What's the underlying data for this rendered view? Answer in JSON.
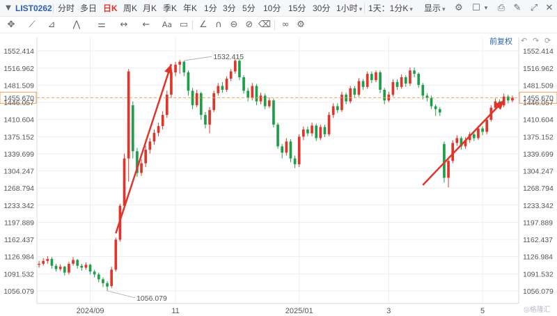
{
  "toolbar": {
    "symbol": "LIST0262",
    "periods": [
      "分时",
      "多日",
      "日K",
      "周K",
      "月K",
      "季K",
      "年K",
      "1分",
      "3分",
      "5分",
      "10分",
      "15分",
      "30分"
    ],
    "active_period": "日K",
    "hour_dropdown": "1小时",
    "interval_dropdown": "1天：1分K",
    "display_dropdown": "显示"
  },
  "restore_label": "前复权",
  "colors": {
    "up": "#e0352b",
    "down": "#1f9e49",
    "grid": "#eceef1",
    "current_line": "#f0a050",
    "arrow": "#e0352b"
  },
  "chart_data": {
    "type": "candlestick",
    "y_ticks": [
      "1552.414",
      "1516.962",
      "1481.509",
      "1446.057",
      "1410.604",
      "1375.152",
      "1339.699",
      "1304.247",
      "1268.794",
      "1233.342",
      "1197.889",
      "1162.437",
      "1126.984",
      "1091.532",
      "1056.079"
    ],
    "ylim": [
      1030,
      1580
    ],
    "x_ticks": [
      {
        "label": "2024/09",
        "index": 12
      },
      {
        "label": "11",
        "index": 32
      },
      {
        "label": "2025/01",
        "index": 61
      },
      {
        "label": "3",
        "index": 82
      },
      {
        "label": "5",
        "index": 104
      }
    ],
    "current_price": "1455.670",
    "current_value": 1455.67,
    "annotations": [
      {
        "label": "1532.415",
        "index": 34,
        "value": 1532.415
      },
      {
        "label": "1056.079",
        "index": 16,
        "value": 1056.079
      }
    ],
    "trend_arrows": [
      {
        "from_index": 18,
        "from_value": 1175,
        "to_index": 31,
        "to_value": 1525
      },
      {
        "from_index": 90,
        "from_value": 1275,
        "to_index": 109,
        "to_value": 1450
      }
    ],
    "candles": [
      {
        "o": 1110,
        "c": 1112,
        "h": 1118,
        "l": 1104
      },
      {
        "o": 1112,
        "c": 1118,
        "h": 1124,
        "l": 1108
      },
      {
        "o": 1118,
        "c": 1122,
        "h": 1128,
        "l": 1112
      },
      {
        "o": 1122,
        "c": 1108,
        "h": 1126,
        "l": 1102
      },
      {
        "o": 1108,
        "c": 1101,
        "h": 1112,
        "l": 1096
      },
      {
        "o": 1101,
        "c": 1106,
        "h": 1111,
        "l": 1097
      },
      {
        "o": 1106,
        "c": 1094,
        "h": 1108,
        "l": 1088
      },
      {
        "o": 1094,
        "c": 1112,
        "h": 1116,
        "l": 1090
      },
      {
        "o": 1112,
        "c": 1120,
        "h": 1126,
        "l": 1108
      },
      {
        "o": 1120,
        "c": 1108,
        "h": 1122,
        "l": 1102
      },
      {
        "o": 1108,
        "c": 1104,
        "h": 1112,
        "l": 1098
      },
      {
        "o": 1104,
        "c": 1110,
        "h": 1115,
        "l": 1100
      },
      {
        "o": 1110,
        "c": 1096,
        "h": 1112,
        "l": 1090
      },
      {
        "o": 1096,
        "c": 1090,
        "h": 1100,
        "l": 1084
      },
      {
        "o": 1090,
        "c": 1080,
        "h": 1094,
        "l": 1074
      },
      {
        "o": 1080,
        "c": 1072,
        "h": 1084,
        "l": 1064
      },
      {
        "o": 1072,
        "c": 1065,
        "h": 1076,
        "l": 1056
      },
      {
        "o": 1066,
        "c": 1100,
        "h": 1106,
        "l": 1062
      },
      {
        "o": 1100,
        "c": 1162,
        "h": 1166,
        "l": 1096
      },
      {
        "o": 1162,
        "c": 1232,
        "h": 1236,
        "l": 1158
      },
      {
        "o": 1232,
        "c": 1330,
        "h": 1340,
        "l": 1228
      },
      {
        "o": 1330,
        "c": 1510,
        "h": 1515,
        "l": 1282
      },
      {
        "o": 1440,
        "c": 1345,
        "h": 1448,
        "l": 1330
      },
      {
        "o": 1345,
        "c": 1300,
        "h": 1352,
        "l": 1292
      },
      {
        "o": 1300,
        "c": 1320,
        "h": 1328,
        "l": 1294
      },
      {
        "o": 1320,
        "c": 1348,
        "h": 1356,
        "l": 1312
      },
      {
        "o": 1348,
        "c": 1365,
        "h": 1372,
        "l": 1340
      },
      {
        "o": 1365,
        "c": 1383,
        "h": 1390,
        "l": 1358
      },
      {
        "o": 1383,
        "c": 1397,
        "h": 1404,
        "l": 1376
      },
      {
        "o": 1397,
        "c": 1420,
        "h": 1428,
        "l": 1390
      },
      {
        "o": 1420,
        "c": 1462,
        "h": 1470,
        "l": 1414
      },
      {
        "o": 1462,
        "c": 1508,
        "h": 1516,
        "l": 1455
      },
      {
        "o": 1508,
        "c": 1524,
        "h": 1530,
        "l": 1500
      },
      {
        "o": 1524,
        "c": 1530,
        "h": 1534,
        "l": 1505
      },
      {
        "o": 1530,
        "c": 1508,
        "h": 1532,
        "l": 1500
      },
      {
        "o": 1508,
        "c": 1470,
        "h": 1512,
        "l": 1460
      },
      {
        "o": 1470,
        "c": 1440,
        "h": 1476,
        "l": 1432
      },
      {
        "o": 1440,
        "c": 1465,
        "h": 1472,
        "l": 1436
      },
      {
        "o": 1465,
        "c": 1420,
        "h": 1468,
        "l": 1410
      },
      {
        "o": 1420,
        "c": 1400,
        "h": 1426,
        "l": 1392
      },
      {
        "o": 1400,
        "c": 1430,
        "h": 1436,
        "l": 1382
      },
      {
        "o": 1430,
        "c": 1465,
        "h": 1470,
        "l": 1426
      },
      {
        "o": 1465,
        "c": 1480,
        "h": 1486,
        "l": 1460
      },
      {
        "o": 1480,
        "c": 1472,
        "h": 1488,
        "l": 1466
      },
      {
        "o": 1472,
        "c": 1495,
        "h": 1500,
        "l": 1468
      },
      {
        "o": 1495,
        "c": 1510,
        "h": 1515,
        "l": 1490
      },
      {
        "o": 1510,
        "c": 1532,
        "h": 1536,
        "l": 1505
      },
      {
        "o": 1532,
        "c": 1498,
        "h": 1535,
        "l": 1492
      },
      {
        "o": 1498,
        "c": 1470,
        "h": 1502,
        "l": 1464
      },
      {
        "o": 1470,
        "c": 1455,
        "h": 1476,
        "l": 1448
      },
      {
        "o": 1455,
        "c": 1480,
        "h": 1486,
        "l": 1450
      },
      {
        "o": 1480,
        "c": 1448,
        "h": 1484,
        "l": 1440
      },
      {
        "o": 1448,
        "c": 1460,
        "h": 1466,
        "l": 1442
      },
      {
        "o": 1460,
        "c": 1438,
        "h": 1464,
        "l": 1432
      },
      {
        "o": 1438,
        "c": 1450,
        "h": 1456,
        "l": 1434
      },
      {
        "o": 1450,
        "c": 1400,
        "h": 1454,
        "l": 1394
      },
      {
        "o": 1400,
        "c": 1355,
        "h": 1404,
        "l": 1350
      },
      {
        "o": 1355,
        "c": 1342,
        "h": 1360,
        "l": 1330
      },
      {
        "o": 1342,
        "c": 1365,
        "h": 1372,
        "l": 1336
      },
      {
        "o": 1365,
        "c": 1330,
        "h": 1370,
        "l": 1322
      },
      {
        "o": 1330,
        "c": 1318,
        "h": 1336,
        "l": 1310
      },
      {
        "o": 1318,
        "c": 1375,
        "h": 1380,
        "l": 1312
      },
      {
        "o": 1375,
        "c": 1390,
        "h": 1396,
        "l": 1368
      },
      {
        "o": 1390,
        "c": 1382,
        "h": 1396,
        "l": 1376
      },
      {
        "o": 1382,
        "c": 1398,
        "h": 1404,
        "l": 1376
      },
      {
        "o": 1398,
        "c": 1372,
        "h": 1402,
        "l": 1366
      },
      {
        "o": 1372,
        "c": 1395,
        "h": 1400,
        "l": 1368
      },
      {
        "o": 1395,
        "c": 1380,
        "h": 1400,
        "l": 1374
      },
      {
        "o": 1380,
        "c": 1420,
        "h": 1426,
        "l": 1376
      },
      {
        "o": 1420,
        "c": 1438,
        "h": 1444,
        "l": 1414
      },
      {
        "o": 1438,
        "c": 1430,
        "h": 1444,
        "l": 1424
      },
      {
        "o": 1430,
        "c": 1462,
        "h": 1468,
        "l": 1426
      },
      {
        "o": 1462,
        "c": 1448,
        "h": 1466,
        "l": 1442
      },
      {
        "o": 1448,
        "c": 1475,
        "h": 1480,
        "l": 1444
      },
      {
        "o": 1475,
        "c": 1462,
        "h": 1480,
        "l": 1456
      },
      {
        "o": 1462,
        "c": 1490,
        "h": 1496,
        "l": 1458
      },
      {
        "o": 1490,
        "c": 1478,
        "h": 1494,
        "l": 1472
      },
      {
        "o": 1478,
        "c": 1505,
        "h": 1510,
        "l": 1474
      },
      {
        "o": 1505,
        "c": 1492,
        "h": 1510,
        "l": 1486
      },
      {
        "o": 1492,
        "c": 1508,
        "h": 1512,
        "l": 1488
      },
      {
        "o": 1508,
        "c": 1472,
        "h": 1512,
        "l": 1465
      },
      {
        "o": 1472,
        "c": 1450,
        "h": 1476,
        "l": 1442
      },
      {
        "o": 1450,
        "c": 1462,
        "h": 1468,
        "l": 1446
      },
      {
        "o": 1462,
        "c": 1488,
        "h": 1494,
        "l": 1458
      },
      {
        "o": 1488,
        "c": 1478,
        "h": 1494,
        "l": 1472
      },
      {
        "o": 1478,
        "c": 1498,
        "h": 1504,
        "l": 1474
      },
      {
        "o": 1498,
        "c": 1485,
        "h": 1502,
        "l": 1478
      },
      {
        "o": 1485,
        "c": 1512,
        "h": 1518,
        "l": 1480
      },
      {
        "o": 1512,
        "c": 1505,
        "h": 1518,
        "l": 1498
      },
      {
        "o": 1505,
        "c": 1482,
        "h": 1508,
        "l": 1476
      },
      {
        "o": 1482,
        "c": 1460,
        "h": 1486,
        "l": 1452
      },
      {
        "o": 1460,
        "c": 1455,
        "h": 1465,
        "l": 1448
      },
      {
        "o": 1455,
        "c": 1438,
        "h": 1460,
        "l": 1432
      },
      {
        "o": 1438,
        "c": 1432,
        "h": 1442,
        "l": 1418
      },
      {
        "o": 1432,
        "c": 1425,
        "h": 1436,
        "l": 1418
      },
      {
        "o": 1360,
        "c": 1290,
        "h": 1365,
        "l": 1280
      },
      {
        "o": 1290,
        "c": 1325,
        "h": 1330,
        "l": 1270
      },
      {
        "o": 1325,
        "c": 1362,
        "h": 1368,
        "l": 1320
      },
      {
        "o": 1362,
        "c": 1372,
        "h": 1378,
        "l": 1356
      },
      {
        "o": 1372,
        "c": 1355,
        "h": 1376,
        "l": 1348
      },
      {
        "o": 1355,
        "c": 1368,
        "h": 1374,
        "l": 1350
      },
      {
        "o": 1368,
        "c": 1380,
        "h": 1385,
        "l": 1362
      },
      {
        "o": 1380,
        "c": 1372,
        "h": 1384,
        "l": 1366
      },
      {
        "o": 1372,
        "c": 1392,
        "h": 1398,
        "l": 1368
      },
      {
        "o": 1392,
        "c": 1385,
        "h": 1396,
        "l": 1378
      },
      {
        "o": 1385,
        "c": 1410,
        "h": 1415,
        "l": 1380
      },
      {
        "o": 1410,
        "c": 1435,
        "h": 1440,
        "l": 1406
      },
      {
        "o": 1435,
        "c": 1448,
        "h": 1454,
        "l": 1430
      },
      {
        "o": 1448,
        "c": 1440,
        "h": 1452,
        "l": 1434
      },
      {
        "o": 1440,
        "c": 1458,
        "h": 1464,
        "l": 1436
      },
      {
        "o": 1458,
        "c": 1450,
        "h": 1462,
        "l": 1444
      },
      {
        "o": 1450,
        "c": 1456,
        "h": 1460,
        "l": 1446
      }
    ]
  }
}
